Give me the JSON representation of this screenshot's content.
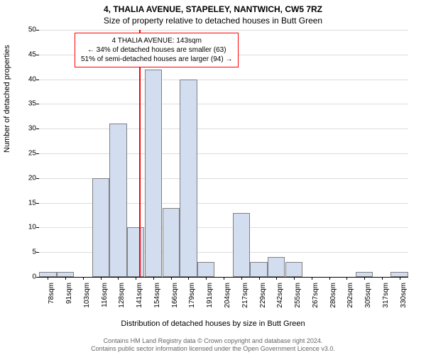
{
  "chart": {
    "type": "histogram",
    "title_line1": "4, THALIA AVENUE, STAPELEY, NANTWICH, CW5 7RZ",
    "title_line2": "Size of property relative to detached houses in Butt Green",
    "y_label": "Number of detached properties",
    "x_label": "Distribution of detached houses by size in Butt Green",
    "footer_line1": "Contains HM Land Registry data © Crown copyright and database right 2024.",
    "footer_line2": "Contains public sector information licensed under the Open Government Licence v3.0.",
    "y_max": 50,
    "y_tick_step": 5,
    "y_ticks": [
      0,
      5,
      10,
      15,
      20,
      25,
      30,
      35,
      40,
      45,
      50
    ],
    "x_ticks": [
      "78sqm",
      "91sqm",
      "103sqm",
      "116sqm",
      "128sqm",
      "141sqm",
      "154sqm",
      "166sqm",
      "179sqm",
      "191sqm",
      "204sqm",
      "217sqm",
      "229sqm",
      "242sqm",
      "255sqm",
      "267sqm",
      "280sqm",
      "292sqm",
      "305sqm",
      "317sqm",
      "330sqm"
    ],
    "bar_color": "#d2ddf0",
    "bar_border_color": "#808080",
    "grid_color": "#dddddd",
    "background_color": "#ffffff",
    "values": [
      1,
      1,
      0,
      20,
      31,
      10,
      42,
      14,
      40,
      3,
      0,
      13,
      3,
      4,
      3,
      0,
      0,
      0,
      1,
      0,
      1
    ],
    "indicator": {
      "position_index": 5.2,
      "color": "#ff0000"
    },
    "annotation": {
      "line1": "4 THALIA AVENUE: 143sqm",
      "line2": "← 34% of detached houses are smaller (63)",
      "line3": "51% of semi-detached houses are larger (94) →",
      "border_color": "#ff0000"
    }
  }
}
